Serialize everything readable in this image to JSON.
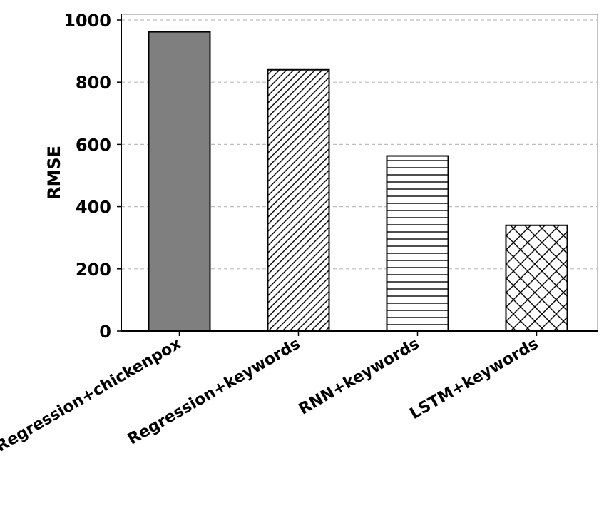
{
  "chart_data": {
    "type": "bar",
    "title": "",
    "xlabel": "",
    "ylabel": "RMSE",
    "ylim": [
      0,
      1000
    ],
    "yticks": [
      0,
      200,
      400,
      600,
      800,
      1000
    ],
    "grid": true,
    "categories": [
      "Regression+chickenpox",
      "Regression+keywords",
      "RNN+keywords",
      "LSTM+keywords"
    ],
    "values": [
      962,
      840,
      563,
      340
    ],
    "bar_fills": [
      "solid-gray",
      "diagonal-hatch",
      "horizontal-hatch",
      "cross-hatch"
    ],
    "colors": {
      "solid_bar": "#7f7f7f",
      "outline": "#000000",
      "grid": "#bdbdbd"
    }
  }
}
